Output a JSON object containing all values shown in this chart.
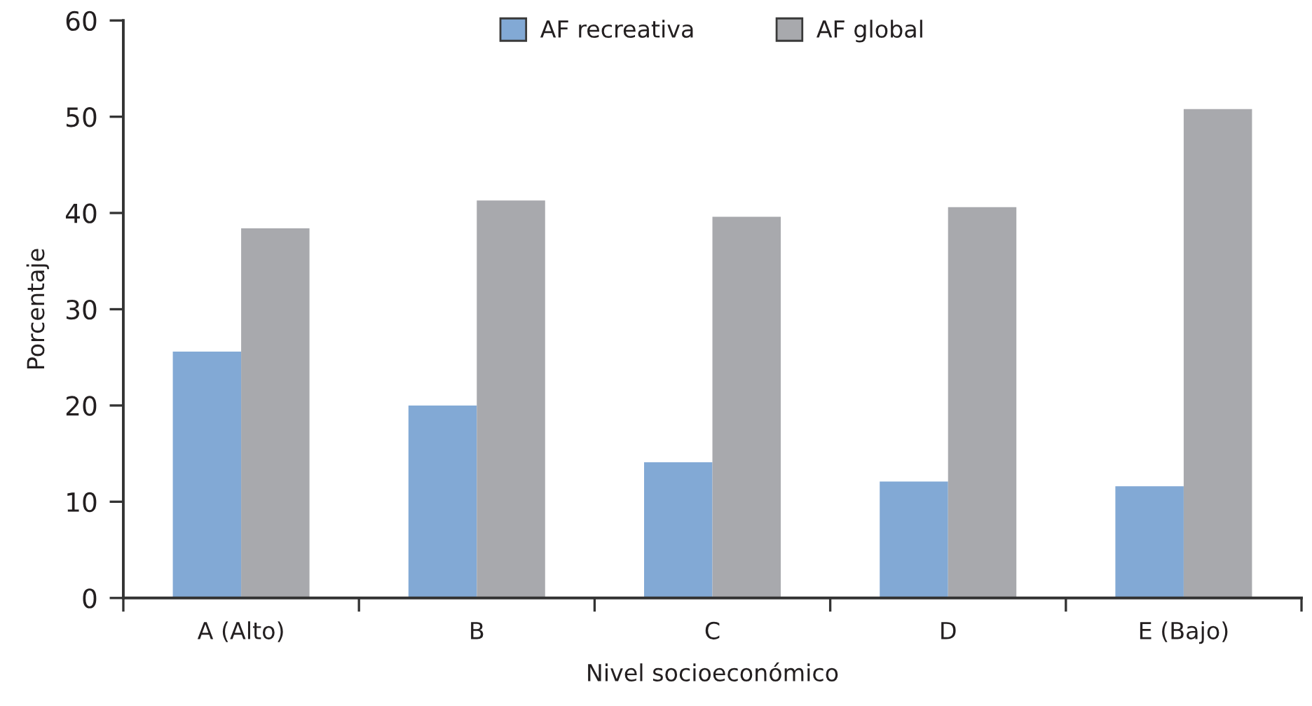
{
  "chart_data": {
    "type": "bar",
    "xlabel": "Nivel socioeconómico",
    "ylabel": "Porcentaje",
    "categories": [
      "A (Alto)",
      "B",
      "C",
      "D",
      "E (Bajo)"
    ],
    "series": [
      {
        "name": "AF recreativa",
        "color": "#82a9d5",
        "values": [
          25.6,
          20.0,
          14.1,
          12.1,
          11.6
        ]
      },
      {
        "name": "AF global",
        "color": "#a8a9ad",
        "values": [
          38.4,
          41.3,
          39.6,
          40.6,
          50.8
        ]
      }
    ],
    "ylim": [
      0,
      60
    ],
    "yticks": [
      0,
      10,
      20,
      30,
      40,
      50,
      60
    ],
    "legend": "top",
    "grid": false
  }
}
